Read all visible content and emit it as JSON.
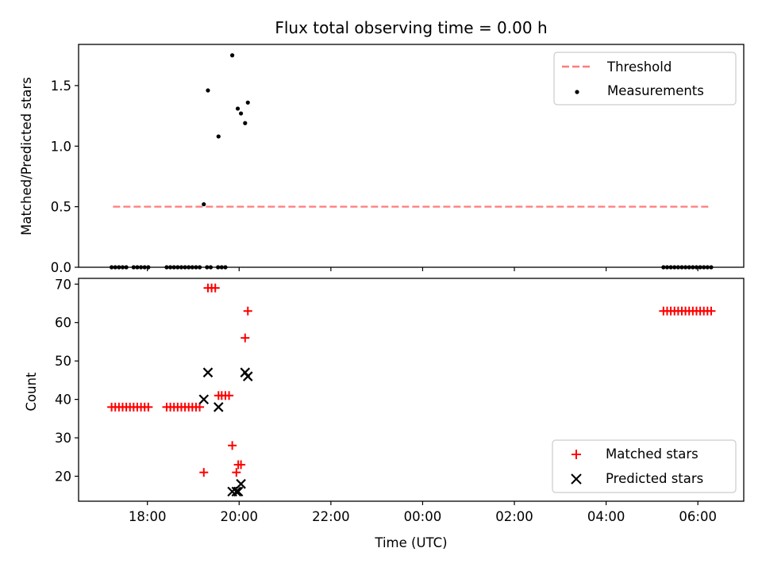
{
  "chart_data": [
    {
      "type": "scatter",
      "title": "Flux total observing time = 0.00 h",
      "ylabel": "Matched/Predicted stars",
      "xlabel": "",
      "x_unit": "hours since 00:00 UTC (negative = previous evening)",
      "xlim": [
        -7.5,
        7
      ],
      "ylim": [
        0,
        1.84
      ],
      "yticks": [
        0.0,
        0.5,
        1.0,
        1.5
      ],
      "ytick_labels": [
        "0.0",
        "0.5",
        "1.0",
        "1.5"
      ],
      "xticks": [
        -6,
        -4,
        -2,
        0,
        2,
        4,
        6
      ],
      "legend": {
        "placement": "top-right",
        "entries": [
          "Threshold",
          "Measurements"
        ]
      },
      "series": [
        {
          "name": "Threshold",
          "style": "dashed-line",
          "color": "#ff7b7b",
          "x": [
            -6.75,
            6.25
          ],
          "y": [
            0.5,
            0.5
          ]
        },
        {
          "name": "Measurements",
          "style": "dot",
          "color": "#000000",
          "x": [
            -6.78,
            -6.7,
            -6.62,
            -6.54,
            -6.46,
            -6.3,
            -6.22,
            -6.14,
            -6.06,
            -5.98,
            -5.58,
            -5.5,
            -5.42,
            -5.34,
            -5.26,
            -5.18,
            -5.1,
            -5.02,
            -4.94,
            -4.86,
            -4.7,
            -4.62,
            -4.46,
            -4.38,
            -4.3,
            -4.77,
            -4.68,
            -4.45,
            -4.15,
            -4.03,
            -3.96,
            -3.87,
            -3.81,
            5.25,
            5.33,
            5.41,
            5.49,
            5.57,
            5.65,
            5.73,
            5.81,
            5.89,
            5.97,
            6.05,
            6.13,
            6.21,
            6.29
          ],
          "y": [
            0,
            0,
            0,
            0,
            0,
            0,
            0,
            0,
            0,
            0,
            0,
            0,
            0,
            0,
            0,
            0,
            0,
            0,
            0,
            0,
            0,
            0,
            0,
            0,
            0,
            0.52,
            1.46,
            1.08,
            1.75,
            1.31,
            1.27,
            1.19,
            1.36,
            0,
            0,
            0,
            0,
            0,
            0,
            0,
            0,
            0,
            0,
            0,
            0,
            0,
            0
          ]
        }
      ]
    },
    {
      "type": "scatter",
      "title": "",
      "ylabel": "Count",
      "xlabel": "Time (UTC)",
      "xlim": [
        -7.5,
        7
      ],
      "ylim": [
        13.5,
        71.5
      ],
      "yticks": [
        20,
        30,
        40,
        50,
        60,
        70
      ],
      "ytick_labels": [
        "20",
        "30",
        "40",
        "50",
        "60",
        "70"
      ],
      "xticks": [
        -6,
        -4,
        -2,
        0,
        2,
        4,
        6
      ],
      "xtick_labels": [
        "18:00",
        "20:00",
        "22:00",
        "00:00",
        "02:00",
        "04:00",
        "06:00"
      ],
      "legend": {
        "placement": "bottom-right",
        "entries": [
          "Matched stars",
          "Predicted stars"
        ]
      },
      "series": [
        {
          "name": "Matched stars",
          "marker": "+",
          "color": "#ff0000",
          "x": [
            -6.78,
            -6.7,
            -6.62,
            -6.54,
            -6.46,
            -6.38,
            -6.3,
            -6.22,
            -6.14,
            -6.06,
            -5.98,
            -5.58,
            -5.5,
            -5.42,
            -5.34,
            -5.26,
            -5.18,
            -5.1,
            -5.02,
            -4.94,
            -4.86,
            -4.77,
            -4.68,
            -4.6,
            -4.52,
            -4.45,
            -4.38,
            -4.3,
            -4.22,
            -4.15,
            -4.06,
            -4.02,
            -3.96,
            -3.87,
            -3.81,
            5.25,
            5.33,
            5.41,
            5.49,
            5.57,
            5.65,
            5.73,
            5.81,
            5.89,
            5.97,
            6.05,
            6.13,
            6.21,
            6.29
          ],
          "y": [
            38,
            38,
            38,
            38,
            38,
            38,
            38,
            38,
            38,
            38,
            38,
            38,
            38,
            38,
            38,
            38,
            38,
            38,
            38,
            38,
            38,
            21,
            69,
            69,
            69,
            41,
            41,
            41,
            41,
            28,
            21,
            23,
            23,
            56,
            63,
            63,
            63,
            63,
            63,
            63,
            63,
            63,
            63,
            63,
            63,
            63,
            63,
            63,
            63
          ]
        },
        {
          "name": "Predicted stars",
          "marker": "x",
          "color": "#000000",
          "x": [
            -4.77,
            -4.68,
            -4.45,
            -4.15,
            -4.06,
            -4.02,
            -3.96,
            -3.87,
            -3.81
          ],
          "y": [
            40,
            47,
            38,
            16,
            16,
            16,
            18,
            47,
            46
          ]
        }
      ]
    }
  ]
}
